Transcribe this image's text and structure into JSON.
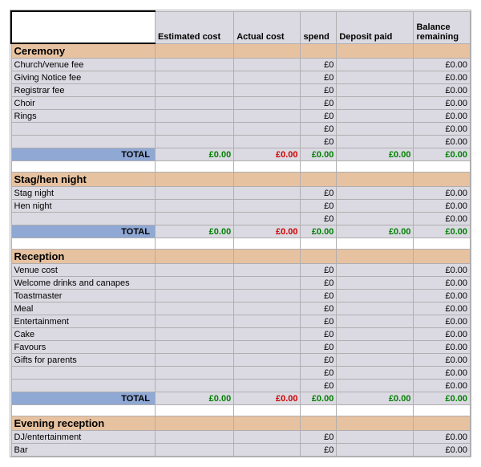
{
  "colors": {
    "grid": "#b0aeb0",
    "header_bg": "#dbdae2",
    "section_bg": "#e7c2a0",
    "data_bg": "#dbdae2",
    "total_label_bg": "#8fa8d4",
    "green": "#008000",
    "red": "#cc0000",
    "white": "#ffffff"
  },
  "columns": {
    "c0": "",
    "c1": "Estimated cost",
    "c2": "Actual cost",
    "c3": "spend",
    "c4": "Deposit paid",
    "c5": "Balance remaining"
  },
  "totals_label": "TOTAL",
  "zero_currency": "£0",
  "zero_currency_dec": "£0.00",
  "sections": [
    {
      "title": "Ceremony",
      "items": [
        "Church/venue fee",
        "Giving Notice fee",
        "Registrar fee",
        "Choir",
        "Rings"
      ],
      "trailing_blank_rows": 2,
      "has_total": true
    },
    {
      "title": "Stag/hen night",
      "items": [
        "Stag night",
        "Hen night"
      ],
      "trailing_blank_rows": 1,
      "has_total": true
    },
    {
      "title": "Reception",
      "items": [
        "Venue cost",
        "Welcome drinks and canapes",
        "Toastmaster",
        "Meal",
        "Entertainment",
        "Cake",
        "Favours",
        "Gifts for parents"
      ],
      "trailing_blank_rows": 2,
      "has_total": true
    },
    {
      "title": "Evening reception",
      "items": [
        "DJ/entertainment",
        "Bar"
      ],
      "trailing_blank_rows": 0,
      "has_total": false
    }
  ],
  "col_widths": {
    "c0": 168,
    "c1": 92,
    "c2": 78,
    "c3": 42,
    "c4": 90,
    "c5": 66
  }
}
